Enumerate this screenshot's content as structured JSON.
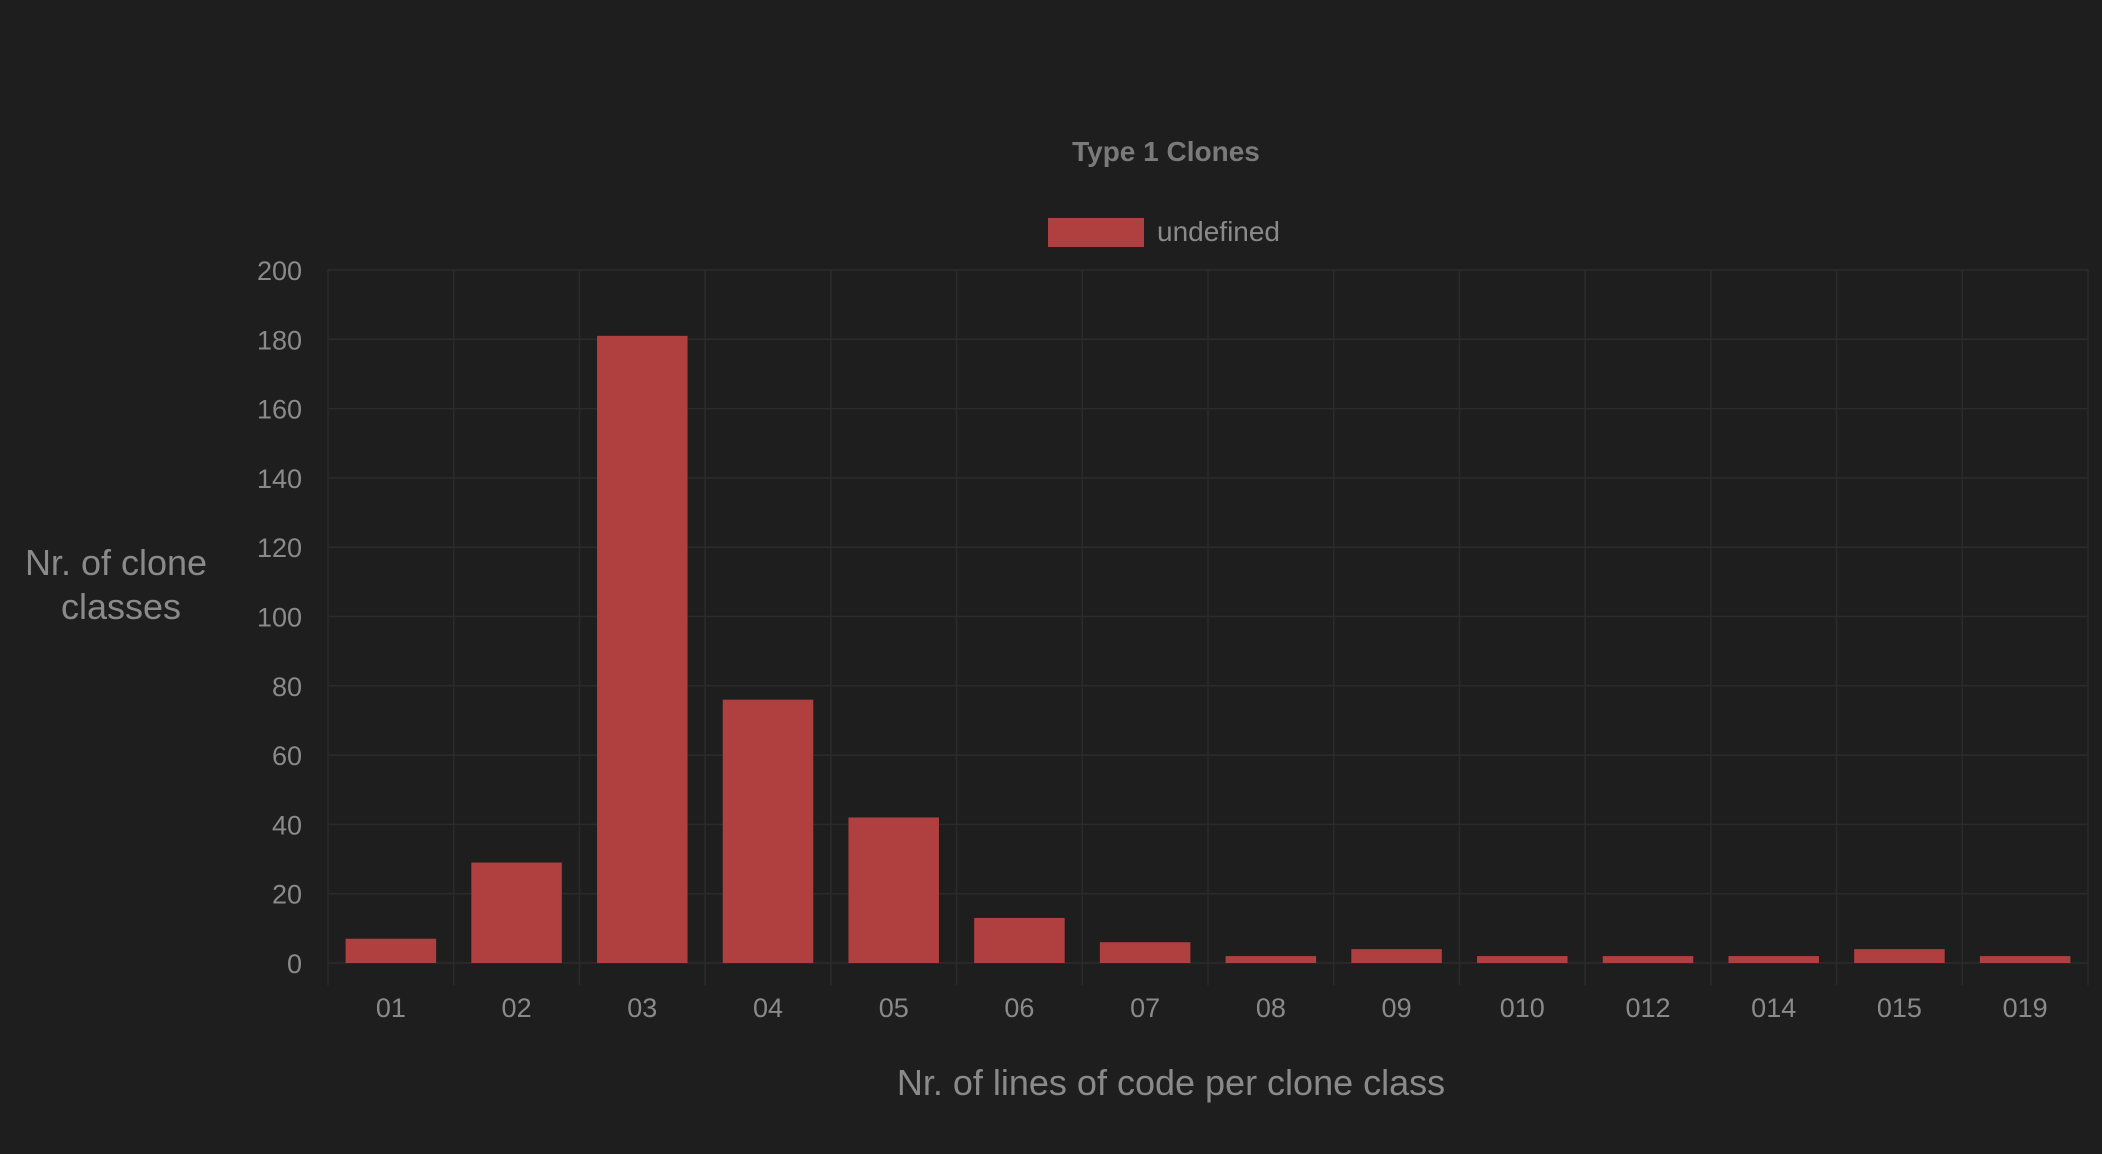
{
  "chart_data": {
    "type": "bar",
    "title": "Type 1 Clones",
    "legend": {
      "label": "undefined",
      "position": "top"
    },
    "categories": [
      "01",
      "02",
      "03",
      "04",
      "05",
      "06",
      "07",
      "08",
      "09",
      "010",
      "012",
      "014",
      "015",
      "019"
    ],
    "series": [
      {
        "name": "undefined",
        "values": [
          7,
          29,
          181,
          76,
          42,
          13,
          6,
          2,
          4,
          2,
          2,
          2,
          4,
          2
        ]
      }
    ],
    "xlabel": "Nr. of lines of code per clone class",
    "ylabel_lines": [
      "Nr. of clone",
      "classes"
    ],
    "ylim": [
      0,
      200
    ],
    "yticks": [
      "0",
      "20",
      "40",
      "60",
      "80",
      "100",
      "120",
      "140",
      "160",
      "180",
      "200"
    ],
    "grid": true,
    "colors": {
      "bar": "#b03f40",
      "background": "#1e1e1e",
      "text": "#8a8a8a"
    }
  }
}
